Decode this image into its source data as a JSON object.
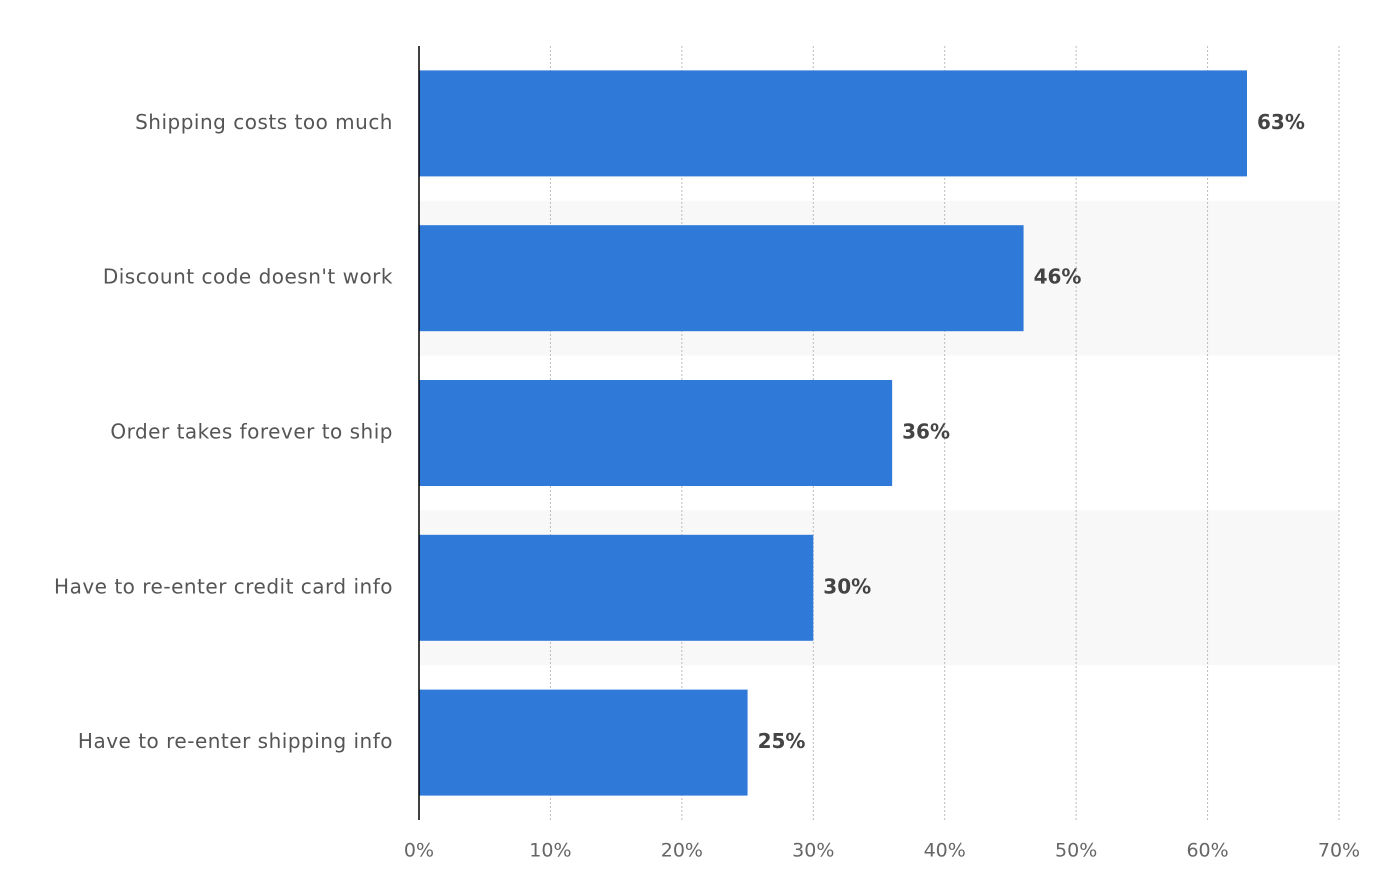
{
  "chart_data": {
    "type": "bar",
    "orientation": "horizontal",
    "categories": [
      "Shipping costs too much",
      "Discount code doesn't work",
      "Order takes forever to ship",
      "Have to re-enter credit card info",
      "Have to re-enter shipping info"
    ],
    "values": [
      63,
      46,
      36,
      30,
      25
    ],
    "value_labels": [
      "63%",
      "46%",
      "36%",
      "30%",
      "25%"
    ],
    "color": "#2f7ad9",
    "xlim": [
      0,
      70
    ],
    "xticks": [
      {
        "value": 0,
        "label": "0%"
      },
      {
        "value": 10,
        "label": "10%"
      },
      {
        "value": 20,
        "label": "20%"
      },
      {
        "value": 30,
        "label": "30%"
      },
      {
        "value": 40,
        "label": "40%"
      },
      {
        "value": 50,
        "label": "50%"
      },
      {
        "value": 60,
        "label": "60%"
      },
      {
        "value": 70,
        "label": "70%"
      }
    ],
    "grid": true
  }
}
